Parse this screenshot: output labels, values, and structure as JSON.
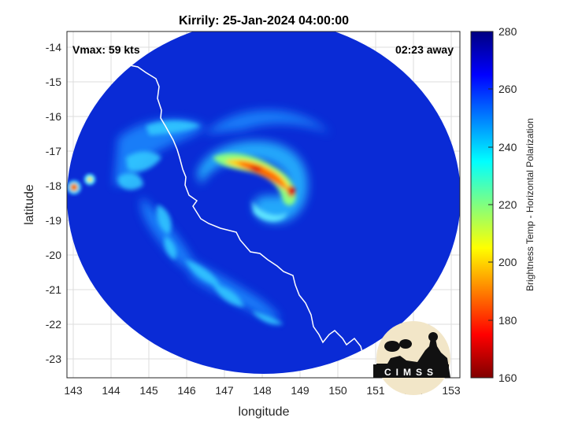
{
  "title": "Kirrily: 25-Jan-2024 04:00:00",
  "vmax_label": "Vmax: 59 kts",
  "time_away_label": "02:23 away",
  "xlabel": "longitude",
  "ylabel": "latitude",
  "x_ticks": [
    "143",
    "144",
    "145",
    "146",
    "147",
    "148",
    "149",
    "150",
    "151",
    "152",
    "153"
  ],
  "y_ticks": [
    "-14",
    "-15",
    "-16",
    "-17",
    "-18",
    "-19",
    "-20",
    "-21",
    "-22",
    "-23"
  ],
  "colorbar": {
    "label": "Brightness Temp - Horizontal Polarization",
    "ticks": [
      "280",
      "260",
      "240",
      "220",
      "200",
      "180",
      "160"
    ],
    "range": [
      160,
      280
    ],
    "colormap": "jet"
  },
  "logo_text": "CIMSS",
  "colors": {
    "background_scan": "#0a2bd6",
    "outside_disc": "#ffffff",
    "coastline": "#ffffff"
  },
  "chart_data": {
    "type": "heatmap",
    "title": "Kirrily: 25-Jan-2024 04:00:00",
    "xlabel": "longitude",
    "ylabel": "latitude",
    "xlim": [
      142.9,
      153.3
    ],
    "ylim": [
      -23.55,
      -13.55
    ],
    "grid": true,
    "storm_intensity_kts": 59,
    "time_to_pass": "02:23",
    "features": [
      {
        "name": "cold band core",
        "lon": 148.5,
        "lat": -17.6,
        "bt": 185
      },
      {
        "name": "eye region",
        "lon": 148.7,
        "lat": -18.6,
        "bt": 262
      },
      {
        "name": "cold spot",
        "lon": 143.1,
        "lat": -18.05,
        "bt": 185
      },
      {
        "name": "cold spot",
        "lon": 143.5,
        "lat": -17.85,
        "bt": 205
      }
    ]
  }
}
